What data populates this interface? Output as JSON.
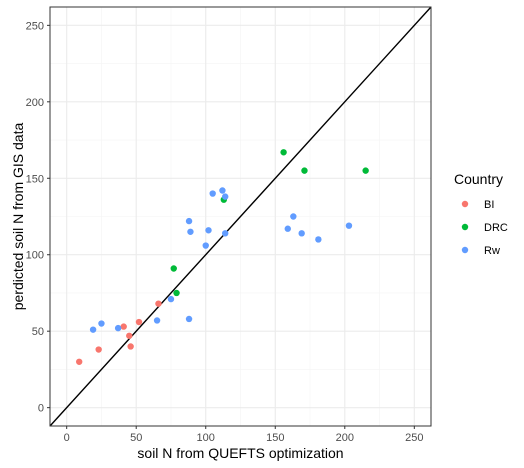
{
  "chart_data": {
    "type": "scatter",
    "title": "",
    "xlabel": "soil N from QUEFTS optimization",
    "ylabel": "perdicted soil N from GIS data",
    "xlim": [
      -12,
      262
    ],
    "ylim": [
      -12,
      262
    ],
    "x_ticks": [
      0,
      50,
      100,
      150,
      200,
      250
    ],
    "y_ticks": [
      0,
      50,
      100,
      150,
      200,
      250
    ],
    "x_tick_labels": [
      "0",
      "50",
      "100",
      "150",
      "200",
      "250"
    ],
    "y_tick_labels": [
      "0",
      "50",
      "100",
      "150",
      "200",
      "250"
    ],
    "grid": true,
    "reference_line": {
      "slope": 1,
      "intercept": 0,
      "color": "#000000"
    },
    "legend": {
      "title": "Country",
      "placement": "right"
    },
    "series": [
      {
        "name": "BI",
        "color": "#F8766D",
        "points": [
          {
            "x": 9,
            "y": 30
          },
          {
            "x": 23,
            "y": 38
          },
          {
            "x": 41,
            "y": 53
          },
          {
            "x": 45,
            "y": 47
          },
          {
            "x": 46,
            "y": 40
          },
          {
            "x": 52,
            "y": 56
          },
          {
            "x": 66,
            "y": 68
          }
        ]
      },
      {
        "name": "DRC",
        "color": "#00BA38",
        "points": [
          {
            "x": 77,
            "y": 91
          },
          {
            "x": 79,
            "y": 75
          },
          {
            "x": 113,
            "y": 136
          },
          {
            "x": 156,
            "y": 167
          },
          {
            "x": 171,
            "y": 155
          },
          {
            "x": 215,
            "y": 155
          }
        ]
      },
      {
        "name": "Rw",
        "color": "#619CFF",
        "points": [
          {
            "x": 19,
            "y": 51
          },
          {
            "x": 25,
            "y": 55
          },
          {
            "x": 37,
            "y": 52
          },
          {
            "x": 65,
            "y": 57
          },
          {
            "x": 75,
            "y": 71
          },
          {
            "x": 88,
            "y": 58
          },
          {
            "x": 88,
            "y": 122
          },
          {
            "x": 89,
            "y": 115
          },
          {
            "x": 100,
            "y": 106
          },
          {
            "x": 102,
            "y": 116
          },
          {
            "x": 105,
            "y": 140
          },
          {
            "x": 112,
            "y": 142
          },
          {
            "x": 114,
            "y": 138
          },
          {
            "x": 114,
            "y": 114
          },
          {
            "x": 159,
            "y": 117
          },
          {
            "x": 163,
            "y": 125
          },
          {
            "x": 169,
            "y": 114
          },
          {
            "x": 181,
            "y": 110
          },
          {
            "x": 203,
            "y": 119
          }
        ]
      }
    ]
  }
}
